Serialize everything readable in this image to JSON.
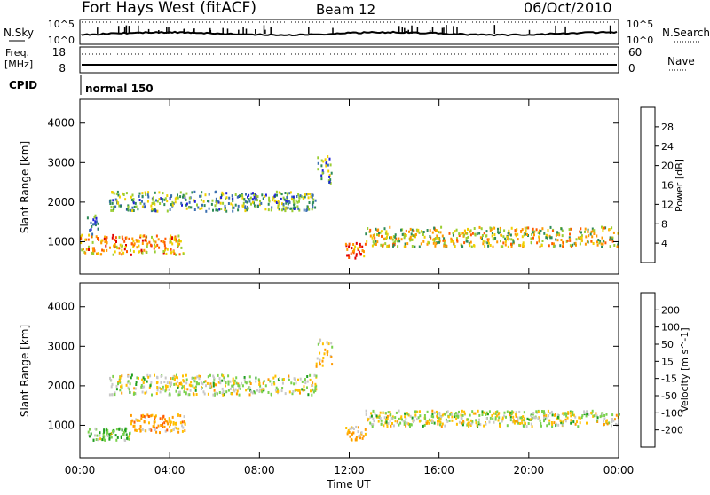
{
  "header": {
    "title": "Fort Hays West (fitACF)",
    "beam": "Beam 12",
    "date": "06/Oct/2010"
  },
  "nsky_panel": {
    "label": "N.Sky",
    "right_label": "N.Search",
    "y_ticks": [
      "10^5",
      "10^0"
    ]
  },
  "freq_panel": {
    "label_line1": "Freq.",
    "label_line2": "[MHz]",
    "y_ticks": [
      "18",
      "8"
    ],
    "right_label": "Nave",
    "right_ticks": [
      "60",
      "0"
    ]
  },
  "cpid_panel": {
    "label": "CPID",
    "mode": "normal 150"
  },
  "colors": {
    "power_scale": [
      "#1f1fd8",
      "#3a6fb0",
      "#2e8b57",
      "#9acd32",
      "#f0d000",
      "#ff9900",
      "#ff5a00",
      "#e00000"
    ],
    "velocity_scale": [
      "#e00000",
      "#ff5a00",
      "#ff9900",
      "#ffc000",
      "#c8c8c8",
      "#7ad14c",
      "#1f9e1f",
      "#3a5fd0",
      "#1a1aa8"
    ]
  },
  "chart_data": [
    {
      "type": "heatmap",
      "title": "",
      "xlabel": "Time UT",
      "ylabel": "Slant Range [km]",
      "xlim": [
        0,
        24
      ],
      "ylim": [
        180,
        4600
      ],
      "x_ticks": [
        "00:00",
        "04:00",
        "08:00",
        "12:00",
        "16:00",
        "20:00",
        "00:00"
      ],
      "y_ticks": [
        1000,
        2000,
        3000,
        4000
      ],
      "colorbar": {
        "label": "Power [dB]",
        "ticks": [
          4,
          8,
          12,
          16,
          20,
          24,
          28
        ],
        "range": [
          0,
          30
        ]
      },
      "echo_bands": [
        {
          "t": [
            0.0,
            4.6
          ],
          "range_km": [
            700,
            1200
          ],
          "power_db": 20
        },
        {
          "t": [
            0.3,
            0.8
          ],
          "range_km": [
            1200,
            1700
          ],
          "power_db": 6
        },
        {
          "t": [
            1.3,
            10.5
          ],
          "range_km": [
            1800,
            2300
          ],
          "power_db": 10
        },
        {
          "t": [
            10.5,
            11.2
          ],
          "range_km": [
            2500,
            3200
          ],
          "power_db": 10
        },
        {
          "t": [
            11.8,
            12.7
          ],
          "range_km": [
            600,
            1000
          ],
          "power_db": 26
        },
        {
          "t": [
            12.7,
            24.0
          ],
          "range_km": [
            900,
            1400
          ],
          "power_db": 16
        }
      ]
    },
    {
      "type": "heatmap",
      "title": "",
      "xlabel": "Time UT",
      "ylabel": "Slant Range [km]",
      "xlim": [
        0,
        24
      ],
      "ylim": [
        180,
        4600
      ],
      "x_ticks": [
        "00:00",
        "04:00",
        "08:00",
        "12:00",
        "16:00",
        "20:00",
        "00:00"
      ],
      "y_ticks": [
        1000,
        2000,
        3000,
        4000
      ],
      "colorbar": {
        "label": "Velocity [m s^-1]",
        "ticks": [
          200,
          100,
          50,
          15,
          -15,
          -50,
          -100,
          -200
        ]
      },
      "echo_bands": [
        {
          "t": [
            0.3,
            2.2
          ],
          "range_km": [
            650,
            950
          ],
          "velocity": 40
        },
        {
          "t": [
            2.2,
            4.8
          ],
          "range_km": [
            850,
            1300
          ],
          "velocity": -60
        },
        {
          "t": [
            1.3,
            10.5
          ],
          "range_km": [
            1800,
            2300
          ],
          "velocity": 0
        },
        {
          "t": [
            10.5,
            11.2
          ],
          "range_km": [
            2500,
            3200
          ],
          "velocity": -30
        },
        {
          "t": [
            11.8,
            12.7
          ],
          "range_km": [
            650,
            1000
          ],
          "velocity": -40
        },
        {
          "t": [
            12.7,
            24.0
          ],
          "range_km": [
            1000,
            1400
          ],
          "velocity": 0
        }
      ]
    }
  ]
}
